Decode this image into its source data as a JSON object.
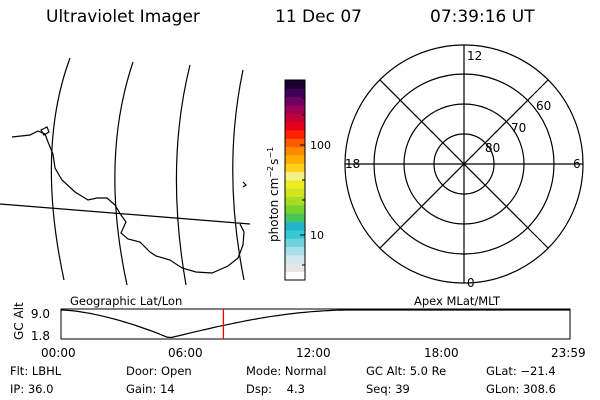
{
  "header": {
    "title": "Ultraviolet Imager",
    "date": "11 Dec 07",
    "time": "07:39:16 UT"
  },
  "colorbar": {
    "unit_base": "photon cm",
    "unit_exp1": "−2",
    "unit_mid": "s",
    "unit_exp2": "−1",
    "tick_labels": [
      "100",
      "10"
    ],
    "colors": [
      "#ffffff",
      "#e6e6e6",
      "#cfe9ee",
      "#a8dfe8",
      "#6fd3df",
      "#35c8d6",
      "#1fb7c9",
      "#49c55e",
      "#78d12c",
      "#a6dc22",
      "#d0e51f",
      "#ecec22",
      "#f4f08a",
      "#ffd11a",
      "#ffae00",
      "#ff8a00",
      "#ff5a00",
      "#ff2200",
      "#e60018",
      "#c20036",
      "#9a0058",
      "#6e0062",
      "#3f0058",
      "#180030"
    ]
  },
  "polar": {
    "mlt_labels": {
      "top": "12",
      "bottom": "0",
      "left": "18",
      "right": "6"
    },
    "lat_labels": [
      "60",
      "70",
      "80"
    ]
  },
  "panel_labels": {
    "left": "Geographic Lat/Lon",
    "right": "Apex MLat/MLT"
  },
  "altitude_plot": {
    "ylabel": "GC Alt",
    "yticks": [
      "9.0",
      "1.8"
    ],
    "xticks": [
      "00:00",
      "06:00",
      "12:00",
      "18:00",
      "23:59"
    ],
    "marker_time_hours": 7.654,
    "marker_color": "#ff0000"
  },
  "info": {
    "flt_label": "Flt:",
    "flt_value": "LBHL",
    "ip_label": "IP:",
    "ip_value": "36.0",
    "door_label": "Door:",
    "door_value": "Open",
    "gain_label": "Gain:",
    "gain_value": "14",
    "mode_label": "Mode:",
    "mode_value": "Normal",
    "dsp_label": "Dsp:",
    "dsp_value": "4.3",
    "gcalt_label": "GC Alt:",
    "gcalt_value": "5.0 Re",
    "seq_label": "Seq:",
    "seq_value": "39",
    "glat_label": "GLat:",
    "glat_value": "−21.4",
    "glon_label": "GLon:",
    "glon_value": "308.6"
  }
}
